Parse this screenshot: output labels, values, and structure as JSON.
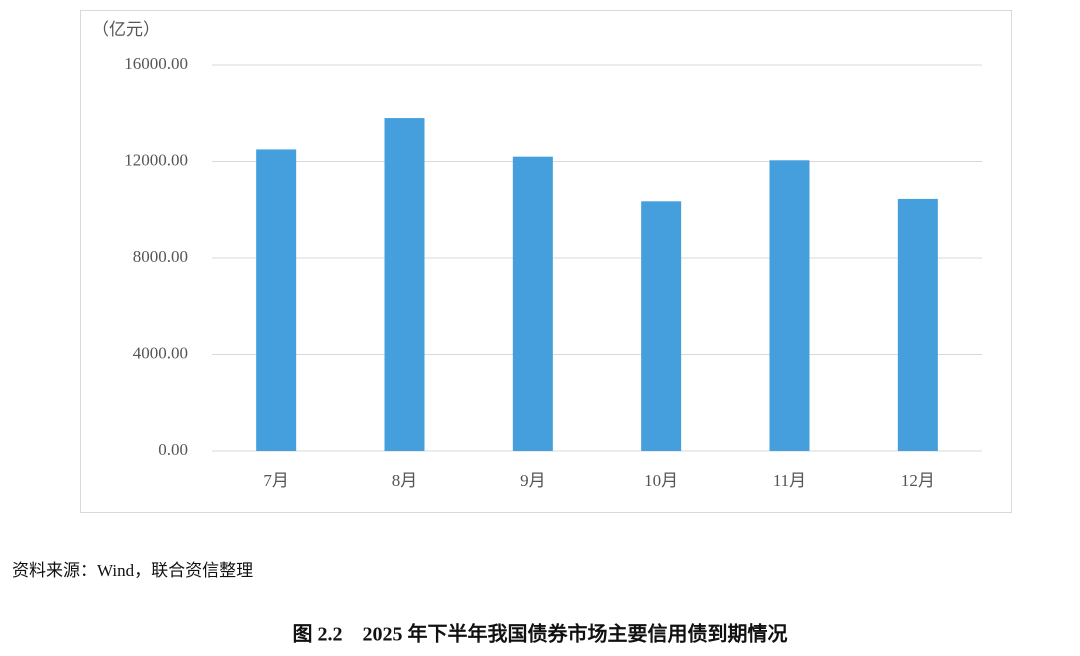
{
  "chart_data": {
    "type": "bar",
    "unit_label": "（亿元）",
    "categories": [
      "7月",
      "8月",
      "9月",
      "10月",
      "11月",
      "12月"
    ],
    "values": [
      12500,
      13800,
      12200,
      10350,
      12050,
      10450
    ],
    "color": "#449fdc",
    "ylim": [
      0,
      16000
    ],
    "yticks": [
      {
        "value": 0,
        "label": "0.00"
      },
      {
        "value": 4000,
        "label": "4000.00"
      },
      {
        "value": 8000,
        "label": "8000.00"
      },
      {
        "value": 12000,
        "label": "12000.00"
      },
      {
        "value": 16000,
        "label": "16000.00"
      }
    ],
    "grid": true,
    "source": "资料来源：Wind，联合资信整理",
    "title": "图 2.2　2025 年下半年我国债券市场主要信用债到期情况"
  }
}
